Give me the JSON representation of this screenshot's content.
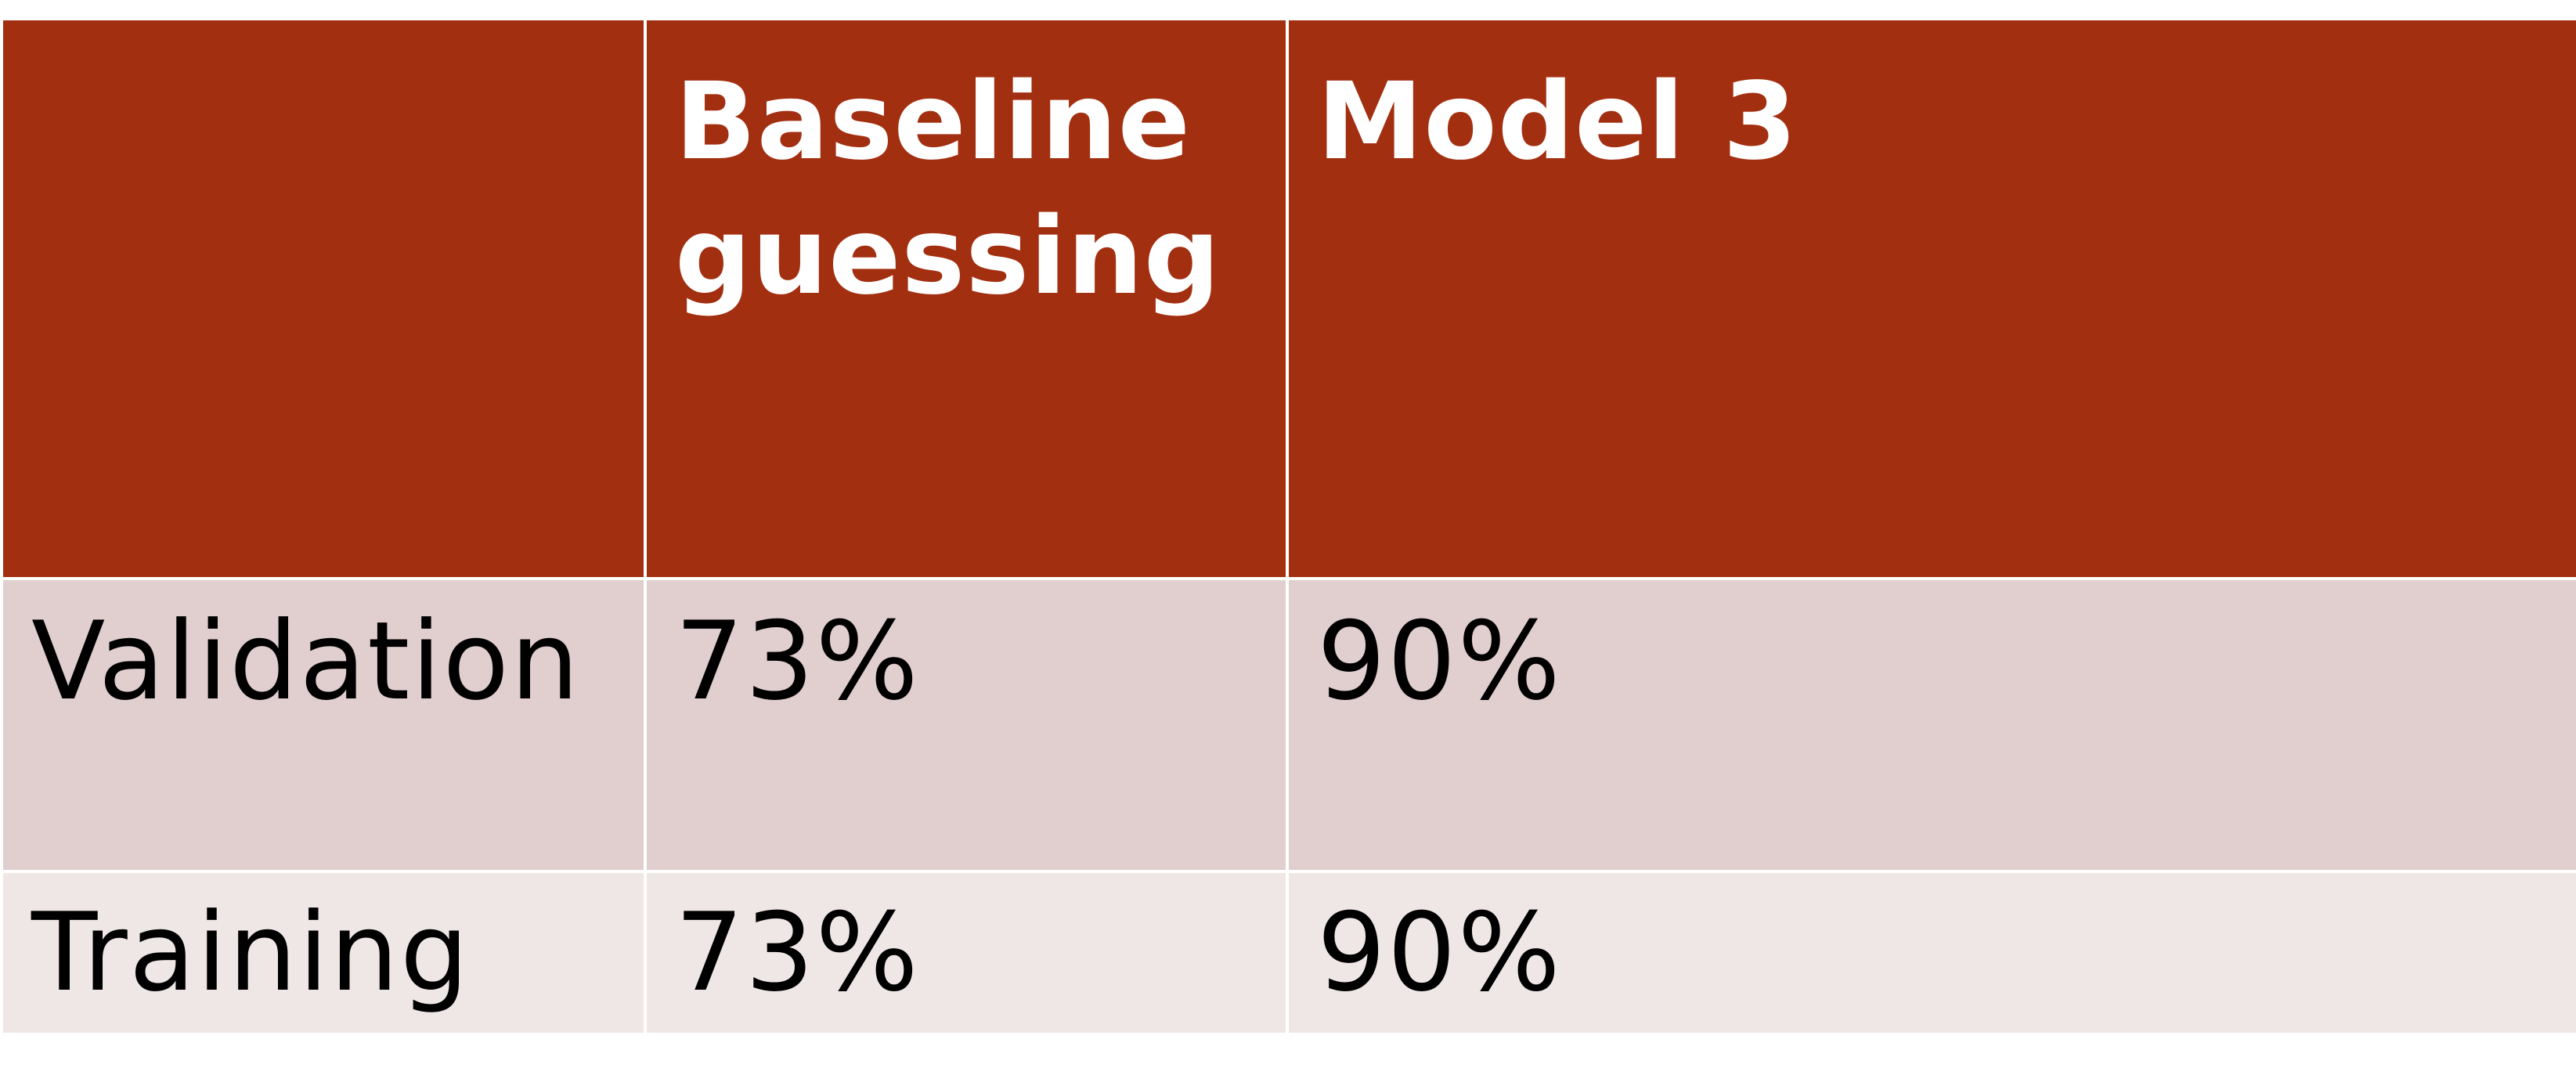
{
  "table": {
    "header": {
      "corner": "",
      "columns": [
        "Baseline guessing",
        "Model 3"
      ]
    },
    "rows": [
      {
        "label": "Validation",
        "values": [
          "73%",
          "90%"
        ]
      },
      {
        "label": "Training",
        "values": [
          "73%",
          "90%"
        ]
      }
    ],
    "colors": {
      "header_bg": "#a32f11",
      "header_text": "#ffffff",
      "row1_bg": "#e1cece",
      "row2_bg": "#efe7e6",
      "body_text": "#000000"
    }
  }
}
